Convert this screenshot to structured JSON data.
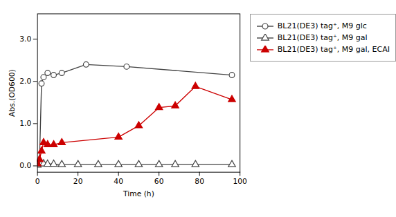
{
  "chart_data": {
    "type": "line",
    "xlabel": "Time (h)",
    "ylabel": "Abs.(OD600)",
    "xlim": [
      0,
      100
    ],
    "ylim": [
      -0.15,
      3.6
    ],
    "xticks": [
      0,
      20,
      40,
      60,
      80,
      100
    ],
    "yticks": [
      0,
      1,
      2,
      3
    ],
    "grid": false,
    "legend": "right",
    "series": [
      {
        "name": "BL21(DE3) tag⁺, M9 glc",
        "color": "#444444",
        "marker": "circle-open",
        "x": [
          0,
          1,
          2,
          3,
          5,
          8,
          12,
          24,
          44,
          96
        ],
        "values": [
          0.05,
          0.1,
          1.95,
          2.1,
          2.2,
          2.15,
          2.2,
          2.4,
          2.35,
          2.15
        ]
      },
      {
        "name": "BL21(DE3) tag⁺, M9 gal",
        "color": "#444444",
        "marker": "triangle-open",
        "x": [
          0,
          1,
          2,
          3,
          5,
          8,
          12,
          20,
          30,
          40,
          50,
          60,
          68,
          78,
          96
        ],
        "values": [
          0.02,
          0.05,
          0.05,
          0.05,
          0.04,
          0.04,
          0.03,
          0.03,
          0.03,
          0.03,
          0.03,
          0.03,
          0.03,
          0.03,
          0.03
        ]
      },
      {
        "name": "BL21(DE3) tag⁺, M9 gal, ECAI",
        "color": "#cc0000",
        "marker": "triangle",
        "x": [
          0,
          1,
          2,
          3,
          5,
          8,
          12,
          40,
          50,
          60,
          68,
          78,
          96
        ],
        "values": [
          0.05,
          0.15,
          0.35,
          0.55,
          0.5,
          0.5,
          0.55,
          0.68,
          0.95,
          1.38,
          1.42,
          1.88,
          1.57
        ]
      }
    ]
  }
}
